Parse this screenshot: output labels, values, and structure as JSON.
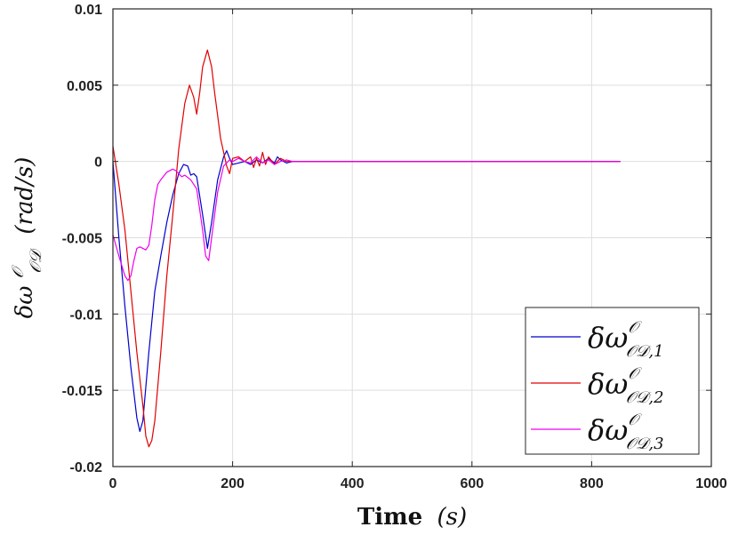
{
  "chart_data": {
    "type": "line",
    "xlabel": "Time (s)",
    "ylabel": "δω^𝒪_𝒪𝒟 (rad/s)",
    "xlabel_main": "Time",
    "xlabel_unit": "(s)",
    "ylabel_main": "δω",
    "ylabel_sup": "𝒪",
    "ylabel_sub": "𝒪𝒟",
    "ylabel_unit": "(rad/s)",
    "xlim": [
      0,
      1000
    ],
    "ylim": [
      -0.02,
      0.01
    ],
    "xticks": [
      0,
      200,
      400,
      600,
      800,
      1000
    ],
    "xtick_labels": [
      "0",
      "200",
      "400",
      "600",
      "800",
      "1000"
    ],
    "yticks": [
      0.01,
      0.005,
      0,
      -0.005,
      -0.01,
      -0.015,
      -0.02
    ],
    "ytick_labels": [
      "0.01",
      "0.005",
      "0",
      "-0.005",
      "-0.01",
      "-0.015",
      "-0.02"
    ],
    "grid": true,
    "legend_position": "bottom-right",
    "series": [
      {
        "name": "δω^𝒪_𝒪𝒟,1",
        "legend_main": "δω",
        "legend_sup": "𝒪",
        "legend_sub": "𝒪𝒟,1",
        "color": "#0000cc",
        "x": [
          0,
          10,
          20,
          30,
          40,
          45,
          50,
          60,
          70,
          80,
          90,
          100,
          110,
          118,
          125,
          130,
          135,
          140,
          150,
          158,
          165,
          175,
          185,
          190,
          195,
          200,
          210,
          220,
          230,
          240,
          250,
          260,
          270,
          275,
          280,
          290,
          300,
          400,
          600,
          848
        ],
        "y": [
          0,
          -0.005,
          -0.0095,
          -0.0135,
          -0.0168,
          -0.0177,
          -0.017,
          -0.0125,
          -0.0085,
          -0.0062,
          -0.004,
          -0.0022,
          -0.0008,
          -0.0002,
          -0.0003,
          -0.0009,
          -0.0008,
          -0.001,
          -0.0035,
          -0.0057,
          -0.004,
          -0.0012,
          0.0003,
          0.0007,
          0.0002,
          -0.0002,
          -0.0001,
          0.0,
          -0.0002,
          0.0001,
          -0.0001,
          0.0002,
          -0.0001,
          0.0003,
          0.0001,
          -0.0001,
          0.0,
          0.0,
          0.0,
          0.0
        ]
      },
      {
        "name": "δω^𝒪_𝒪𝒟,2",
        "legend_main": "δω",
        "legend_sup": "𝒪",
        "legend_sub": "𝒪𝒟,2",
        "color": "#e00000",
        "x": [
          0,
          10,
          20,
          30,
          40,
          50,
          55,
          60,
          65,
          70,
          80,
          90,
          100,
          110,
          120,
          128,
          135,
          140,
          145,
          150,
          158,
          165,
          170,
          175,
          180,
          190,
          195,
          200,
          210,
          220,
          230,
          235,
          240,
          245,
          250,
          255,
          260,
          270,
          280,
          290,
          300,
          400,
          600,
          848
        ],
        "y": [
          0.001,
          -0.0015,
          -0.0045,
          -0.0085,
          -0.0125,
          -0.016,
          -0.018,
          -0.0187,
          -0.0183,
          -0.017,
          -0.0125,
          -0.0075,
          -0.0035,
          0.0008,
          0.0038,
          0.005,
          0.0042,
          0.0031,
          0.0045,
          0.0062,
          0.0073,
          0.0062,
          0.0045,
          0.003,
          0.0015,
          -0.0003,
          -0.0008,
          0.0002,
          0.0003,
          0.0,
          0.0003,
          -0.0004,
          0.0002,
          -0.0003,
          0.0006,
          -0.0002,
          0.0003,
          -0.0002,
          0.0002,
          0.0,
          0.0,
          0.0,
          0.0,
          0.0
        ]
      },
      {
        "name": "δω^𝒪_𝒪𝒟,3",
        "legend_main": "δω",
        "legend_sup": "𝒪",
        "legend_sub": "𝒪𝒟,3",
        "color": "#ee00ee",
        "x": [
          0,
          10,
          20,
          25,
          30,
          35,
          40,
          45,
          55,
          60,
          65,
          70,
          75,
          80,
          90,
          100,
          105,
          110,
          115,
          120,
          130,
          140,
          150,
          155,
          160,
          165,
          175,
          185,
          195,
          200,
          210,
          220,
          230,
          240,
          250,
          260,
          270,
          280,
          290,
          300,
          400,
          600,
          848
        ],
        "y": [
          -0.0048,
          -0.0062,
          -0.0075,
          -0.0078,
          -0.0075,
          -0.0065,
          -0.0057,
          -0.0056,
          -0.0058,
          -0.0055,
          -0.0042,
          -0.0025,
          -0.0015,
          -0.0012,
          -0.0007,
          -0.0005,
          -0.0006,
          -0.0008,
          -0.001,
          -0.0009,
          -0.0012,
          -0.0018,
          -0.0045,
          -0.0062,
          -0.0065,
          -0.005,
          -0.002,
          -0.0003,
          0.0001,
          0.0,
          0.0002,
          0.0,
          -0.0001,
          0.0003,
          -0.0001,
          0.0001,
          -0.0002,
          0.0,
          0.0001,
          0.0,
          0.0,
          0.0,
          0.0
        ]
      }
    ]
  }
}
